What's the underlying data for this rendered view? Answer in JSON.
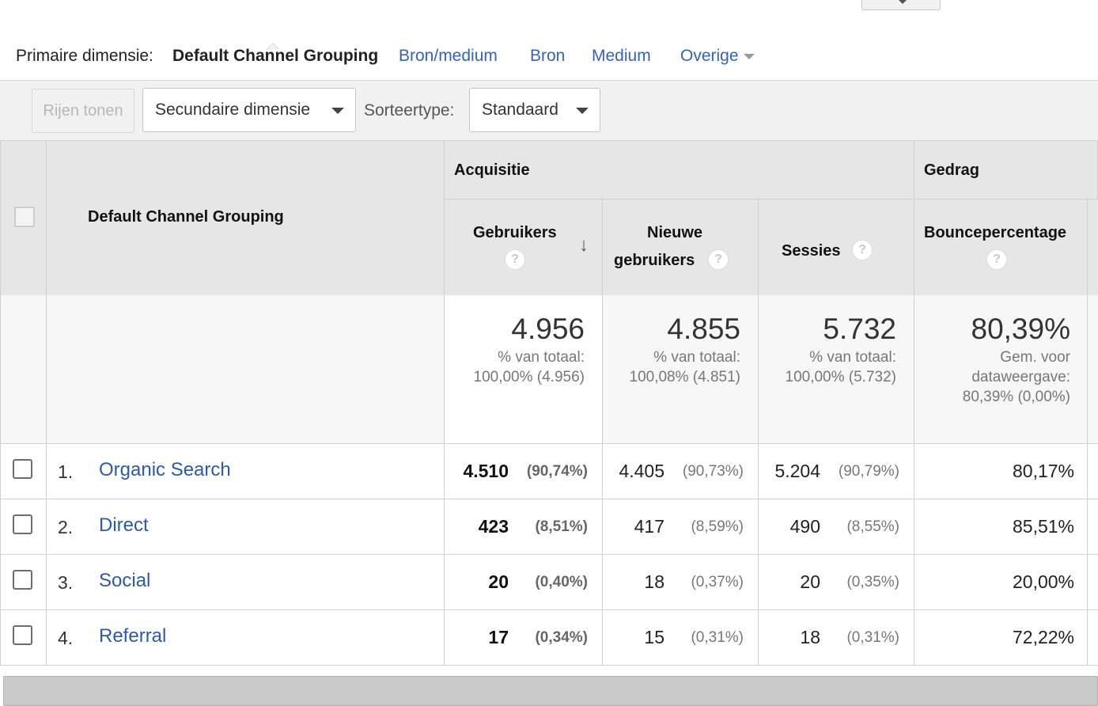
{
  "primary_dimension": {
    "label": "Primaire dimensie:",
    "active": "Default Channel Grouping",
    "links": [
      "Bron/medium",
      "Bron",
      "Medium",
      "Overige"
    ]
  },
  "toolbar": {
    "rows_button": "Rijen tonen",
    "secondary_dimension": "Secundaire dimensie",
    "sort_label": "Sorteertype:",
    "sort_value": "Standaard"
  },
  "table": {
    "dimension_header": "Default Channel Grouping",
    "groups": {
      "acquisition": "Acquisitie",
      "behavior": "Gedrag"
    },
    "columns": {
      "users": "Gebruikers",
      "new_users_line1": "Nieuwe",
      "new_users_line2": "gebruikers",
      "sessions": "Sessies",
      "bounce": "Bouncepercentage"
    },
    "help_glyph": "?",
    "sort_glyph": "↓",
    "totals": {
      "users": {
        "value": "4.956",
        "line1": "% van totaal:",
        "line2": "100,00% (4.956)"
      },
      "new_users": {
        "value": "4.855",
        "line1": "% van totaal:",
        "line2": "100,08% (4.851)"
      },
      "sessions": {
        "value": "5.732",
        "line1": "% van totaal:",
        "line2": "100,00% (5.732)"
      },
      "bounce": {
        "value": "80,39%",
        "line1": "Gem. voor",
        "line2": "dataweergave:",
        "line3": "80,39% (0,00%)"
      }
    },
    "rows": [
      {
        "num": "1.",
        "name": "Organic Search",
        "users": "4.510",
        "users_pct": "(90,74%)",
        "new_users": "4.405",
        "new_users_pct": "(90,73%)",
        "sessions": "5.204",
        "sessions_pct": "(90,79%)",
        "bounce": "80,17%"
      },
      {
        "num": "2.",
        "name": "Direct",
        "users": "423",
        "users_pct": "(8,51%)",
        "new_users": "417",
        "new_users_pct": "(8,59%)",
        "sessions": "490",
        "sessions_pct": "(8,55%)",
        "bounce": "85,51%"
      },
      {
        "num": "3.",
        "name": "Social",
        "users": "20",
        "users_pct": "(0,40%)",
        "new_users": "18",
        "new_users_pct": "(0,37%)",
        "sessions": "20",
        "sessions_pct": "(0,35%)",
        "bounce": "20,00%"
      },
      {
        "num": "4.",
        "name": "Referral",
        "users": "17",
        "users_pct": "(0,34%)",
        "new_users": "15",
        "new_users_pct": "(0,31%)",
        "sessions": "18",
        "sessions_pct": "(0,31%)",
        "bounce": "72,22%"
      }
    ]
  },
  "colors": {
    "link": "#2b5aa8",
    "header_bg": "#e6e6e6",
    "toolbar_bg": "#f1f1f1"
  }
}
